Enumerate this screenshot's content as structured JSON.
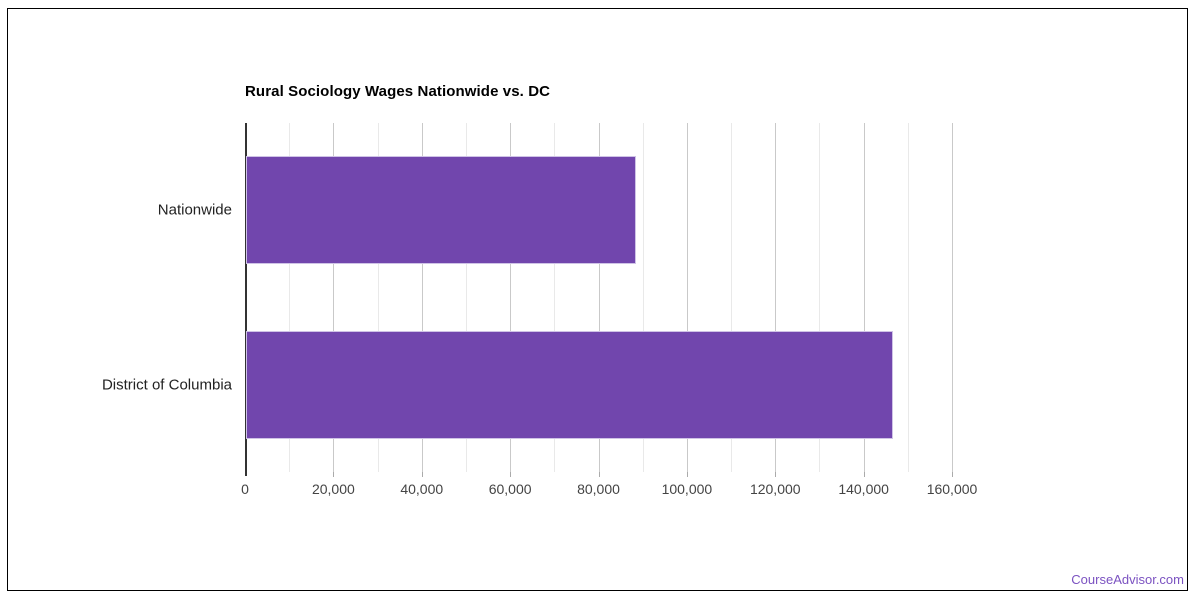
{
  "chart_data": {
    "type": "bar",
    "orientation": "horizontal",
    "title": "Rural Sociology Wages Nationwide vs. DC",
    "categories": [
      "Nationwide",
      "District of Columbia"
    ],
    "values": [
      88200,
      146400
    ],
    "xlabel": "",
    "ylabel": "",
    "xlim": [
      0,
      160000
    ],
    "x_major_ticks": [
      0,
      20000,
      40000,
      60000,
      80000,
      100000,
      120000,
      140000,
      160000
    ],
    "x_tick_labels": [
      "0",
      "20,000",
      "40,000",
      "60,000",
      "80,000",
      "100,000",
      "120,000",
      "140,000",
      "160,000"
    ],
    "x_minor_gridline_step": 10000,
    "grid": true,
    "legend": "none",
    "colors": {
      "bar_fill": "#7146ad",
      "bar_edge": "#cfc3e6",
      "major_gridline": "#c9c9c9",
      "minor_gridline": "#e9e9e9",
      "axis_line": "#333333",
      "tick_label": "#444444",
      "category_label": "#222222",
      "title": "#000000"
    }
  },
  "footer": {
    "brand_link": "CourseAdvisor.com",
    "color": "#7b52c1"
  }
}
